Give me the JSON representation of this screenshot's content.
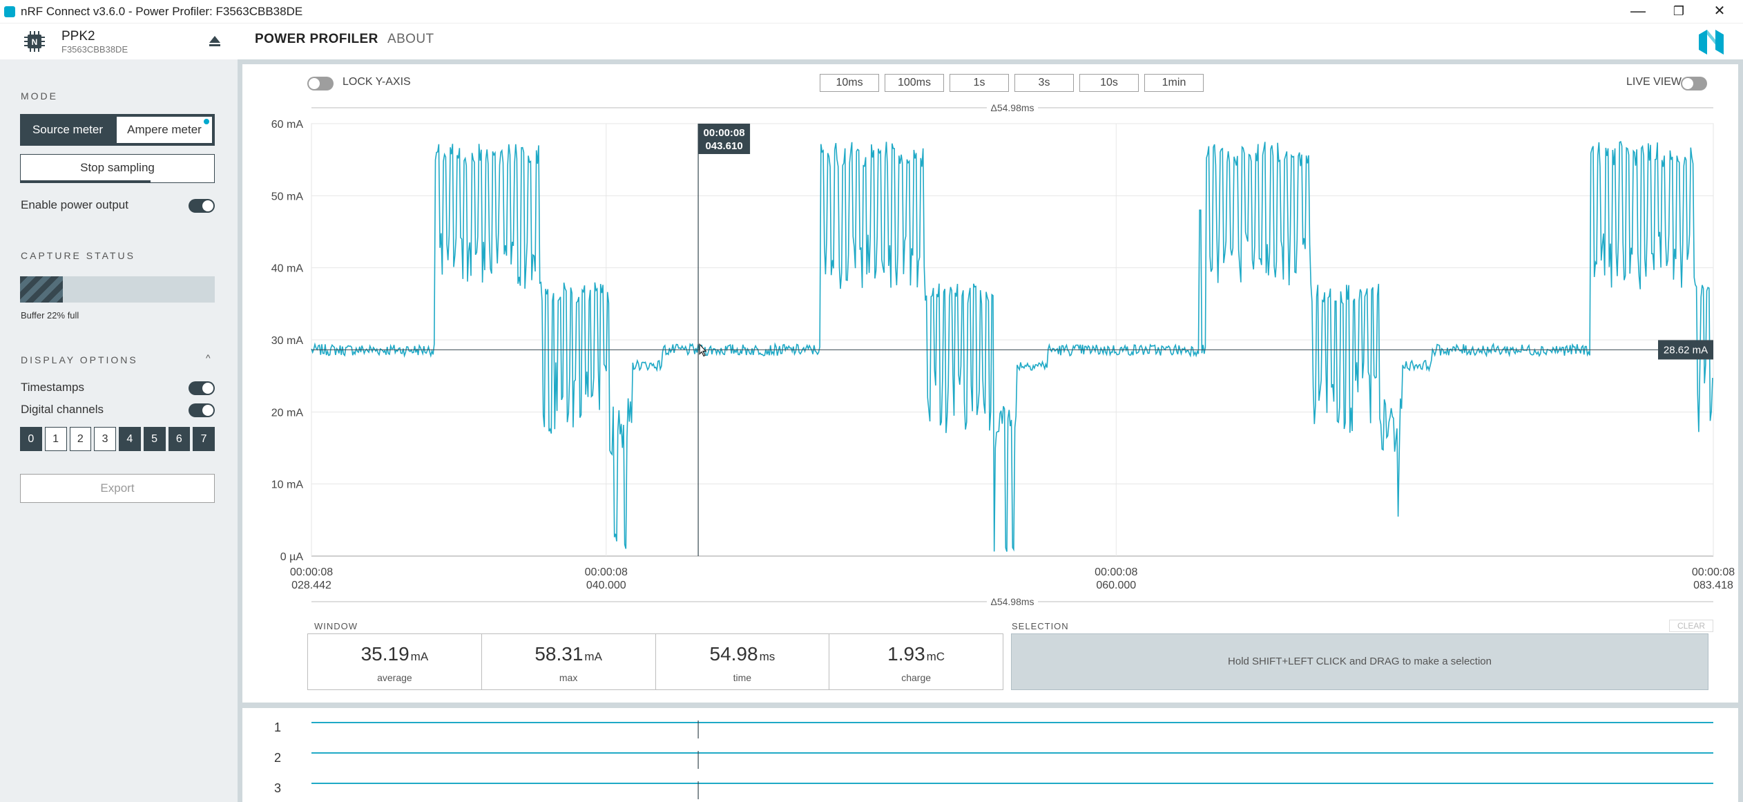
{
  "window": {
    "title": "nRF Connect v3.6.0 - Power Profiler: F3563CBB38DE",
    "minimize": "—",
    "maximize": "❐",
    "close": "✕"
  },
  "header": {
    "device_name": "PPK2",
    "device_serial": "F3563CBB38DE",
    "tabs": [
      "POWER PROFILER",
      "ABOUT"
    ],
    "icons": [
      "chip-icon",
      "eject-icon",
      "nordic-logo"
    ]
  },
  "sidebar": {
    "mode_title": "MODE",
    "mode_options": [
      "Source meter",
      "Ampere meter"
    ],
    "mode_selected": "Source meter",
    "stop_label": "Stop sampling",
    "enable_power_label": "Enable power output",
    "enable_power_on": true,
    "capture_title": "CAPTURE STATUS",
    "buffer_fraction": 0.22,
    "buffer_text": "Buffer 22% full",
    "display_title": "DISPLAY OPTIONS",
    "display_caret": "^",
    "timestamps_label": "Timestamps",
    "timestamps_on": true,
    "digital_label": "Digital channels",
    "digital_on": true,
    "channels": [
      {
        "label": "0",
        "on": true
      },
      {
        "label": "1",
        "on": false
      },
      {
        "label": "2",
        "on": false
      },
      {
        "label": "3",
        "on": false
      },
      {
        "label": "4",
        "on": true
      },
      {
        "label": "5",
        "on": true
      },
      {
        "label": "6",
        "on": true
      },
      {
        "label": "7",
        "on": true
      }
    ],
    "export_label": "Export"
  },
  "chart_panel": {
    "lock_label": "LOCK Y-AXIS",
    "lock_on": false,
    "zoom_options": [
      "10ms",
      "100ms",
      "1s",
      "3s",
      "10s",
      "1min"
    ],
    "live_label": "LIVE VIEW",
    "live_on": false,
    "delta_top": "Δ54.98ms",
    "delta_bottom": "Δ54.98ms",
    "cursor_time": [
      "00:00:08",
      "043.610"
    ],
    "value_tag": "28.62 mA"
  },
  "chart_data": {
    "type": "line",
    "ylabel": "",
    "ylim": [
      0,
      60
    ],
    "y_ticks": [
      "0 µA",
      "10 mA",
      "20 mA",
      "30 mA",
      "40 mA",
      "50 mA",
      "60 mA"
    ],
    "xlim": [
      28.442,
      83.418
    ],
    "x_ticks": [
      {
        "value": 28.442,
        "label": [
          "00:00:08",
          "028.442"
        ]
      },
      {
        "value": 40.0,
        "label": [
          "00:00:08",
          "040.000"
        ]
      },
      {
        "value": 60.0,
        "label": [
          "00:00:08",
          "060.000"
        ]
      },
      {
        "value": 83.418,
        "label": [
          "00:00:08",
          "083.418"
        ]
      }
    ],
    "cursor_x": 43.61,
    "horizontal_marker": 28.62,
    "grid": true,
    "series_color": "#1fa9c6",
    "series": [
      {
        "period_ms": 15.1,
        "first_burst_start": 33.3,
        "segments": [
          {
            "name": "baseline",
            "duration": 4.9,
            "level": 28.6,
            "noise": 0.8
          },
          {
            "name": "burst-high",
            "duration": 4.1,
            "level": 54,
            "spike_high": 57.5,
            "spike_low": 37
          },
          {
            "name": "burst-mid",
            "duration": 2.7,
            "level": 35,
            "spike_high": 38,
            "spike_low": 17
          },
          {
            "name": "dip",
            "duration": 0.9,
            "level": 14,
            "spike_low": 0
          },
          {
            "name": "recovery",
            "duration": 1.2,
            "level": 26.5,
            "noise": 0.7
          }
        ],
        "mid_spike_ms": 63.3,
        "mid_spike_value": 48
      }
    ]
  },
  "stats": {
    "window_title": "WINDOW",
    "selection_title": "SELECTION",
    "clear_label": "CLEAR",
    "items": [
      {
        "value": "35.19",
        "unit": "mA",
        "label": "average"
      },
      {
        "value": "58.31",
        "unit": "mA",
        "label": "max"
      },
      {
        "value": "54.98",
        "unit": "ms",
        "label": "time"
      },
      {
        "value": "1.93",
        "unit": "mC",
        "label": "charge"
      }
    ],
    "selection_hint": "Hold SHIFT+LEFT CLICK and DRAG to make a selection"
  },
  "digital_channels": {
    "labels": [
      "1",
      "2",
      "3"
    ]
  }
}
